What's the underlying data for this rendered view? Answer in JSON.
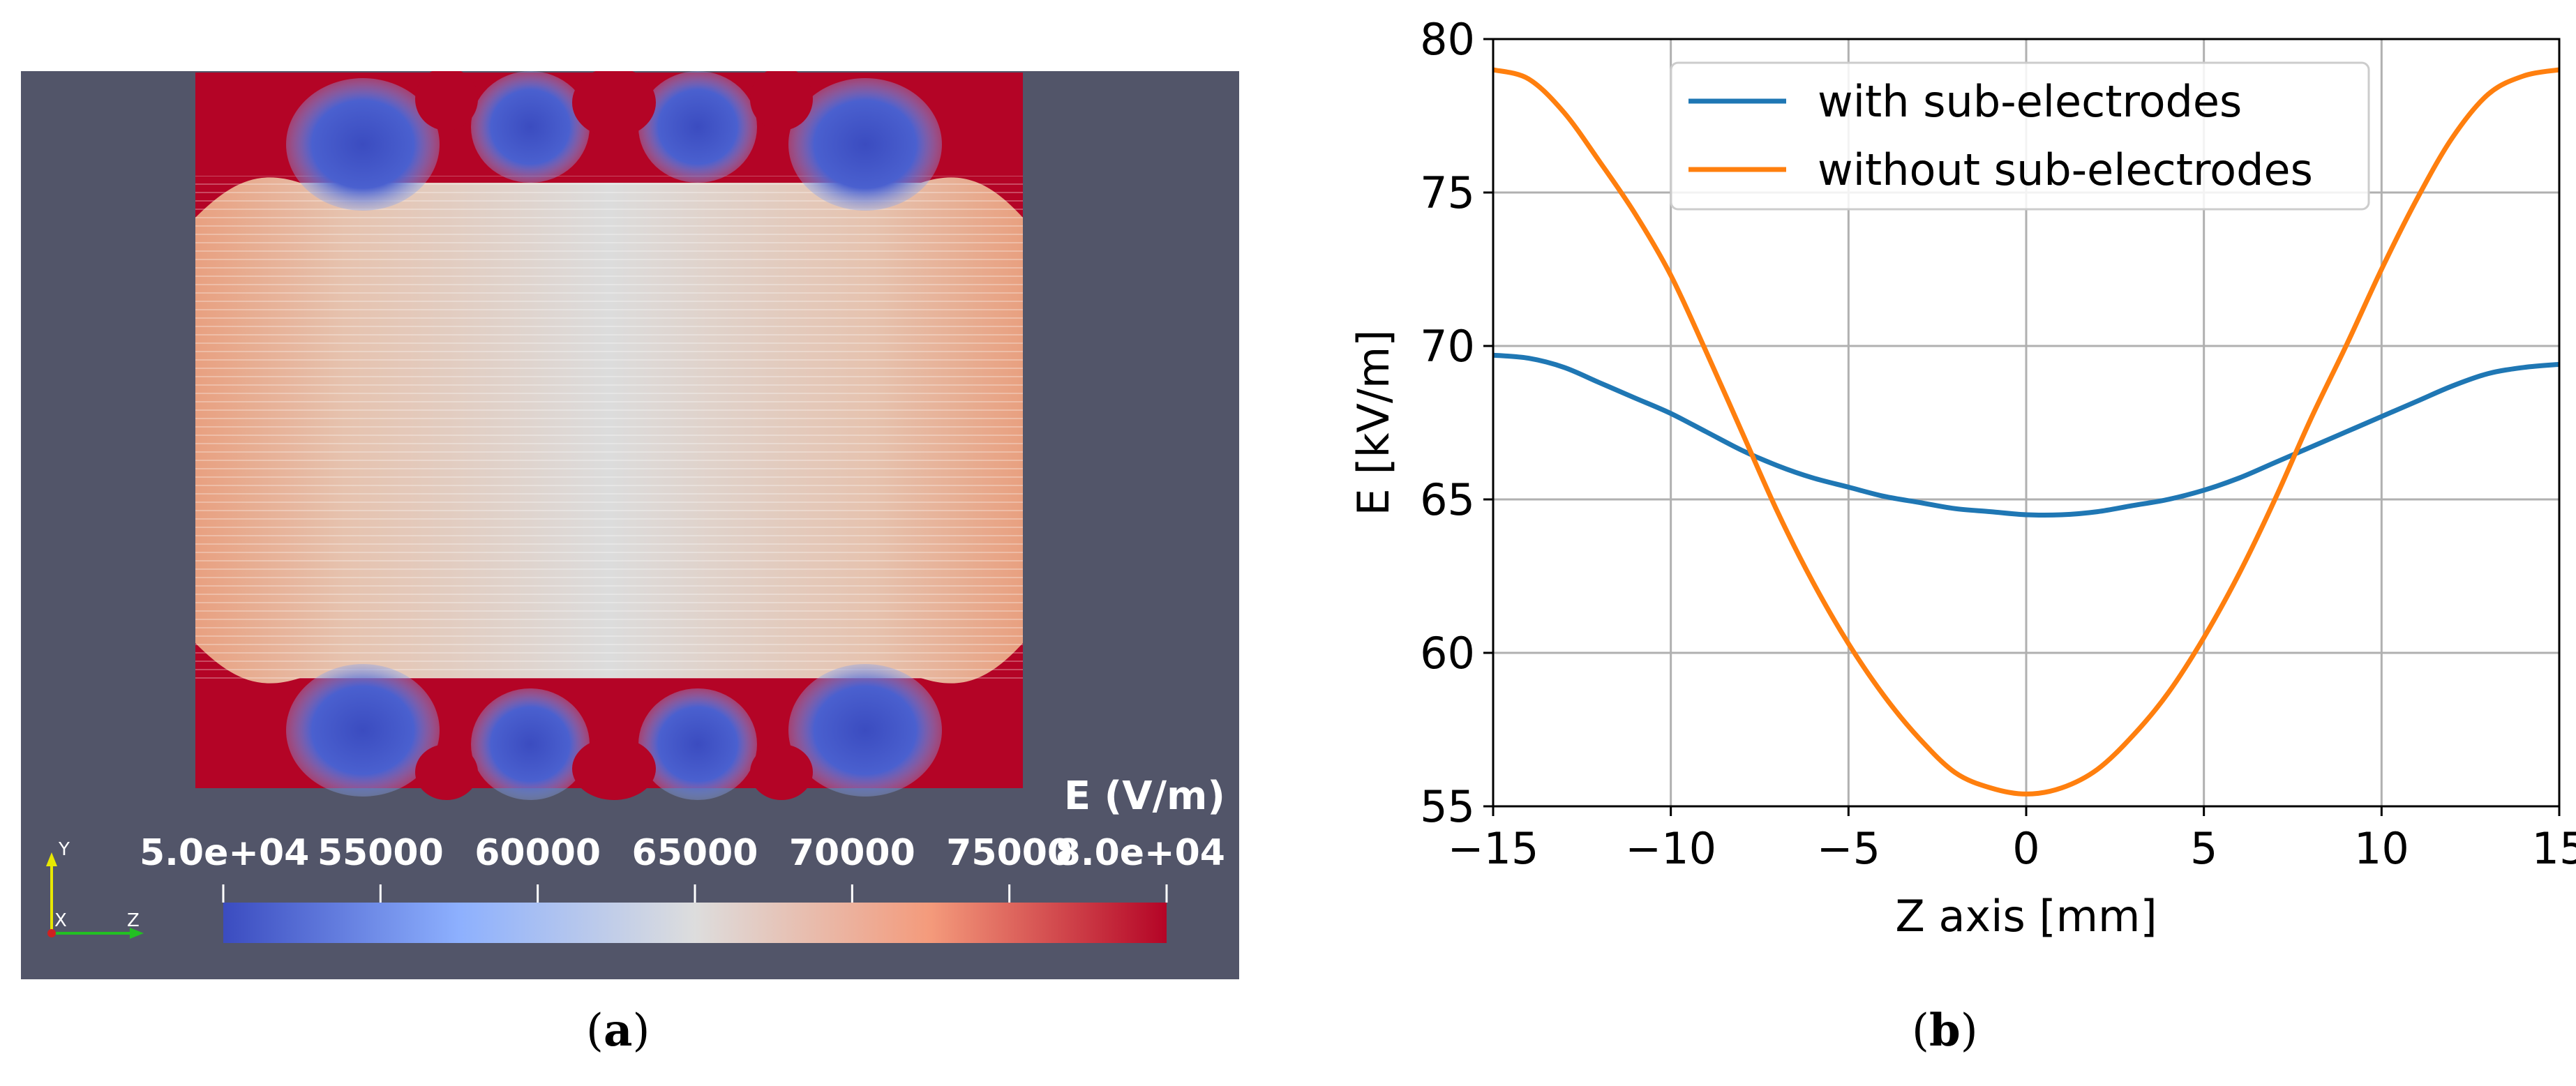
{
  "panel_a": {
    "caption_open": "(",
    "caption_letter": "a",
    "caption_close": ")",
    "colorbar_title": "E (V/m)",
    "colorbar_ticks": [
      "5.0e+04",
      "55000",
      "60000",
      "65000",
      "70000",
      "75000",
      "8.0e+04"
    ],
    "axes_labels": {
      "y": "Y",
      "x": "X",
      "z": "Z"
    },
    "colors": {
      "background": "#525569",
      "low": "#3b4cc0",
      "mid": "#dddddd",
      "high": "#b40426"
    }
  },
  "panel_b": {
    "caption_open": "(",
    "caption_letter": "b",
    "caption_close": ")"
  },
  "chart_data": {
    "type": "line",
    "title": "",
    "xlabel": "Z axis [mm]",
    "ylabel": "E [kV/m]",
    "xlim": [
      -15,
      15
    ],
    "ylim": [
      55,
      80
    ],
    "xticks": [
      -15,
      -10,
      -5,
      0,
      5,
      10,
      15
    ],
    "xtick_labels": [
      "−15",
      "−10",
      "−5",
      "0",
      "5",
      "10",
      "15"
    ],
    "yticks": [
      55,
      60,
      65,
      70,
      75,
      80
    ],
    "ytick_labels": [
      "55",
      "60",
      "65",
      "70",
      "75",
      "80"
    ],
    "grid": true,
    "legend_position": "top-center",
    "series": [
      {
        "name": "with sub-electrodes",
        "color": "#1f77b4",
        "x": [
          -15,
          -14,
          -13,
          -12,
          -11,
          -10,
          -9,
          -8,
          -7,
          -6,
          -5,
          -4,
          -3,
          -2,
          -1,
          0,
          1,
          2,
          3,
          4,
          5,
          6,
          7,
          8,
          9,
          10,
          11,
          12,
          13,
          14,
          15
        ],
        "y": [
          69.7,
          69.6,
          69.3,
          68.8,
          68.3,
          67.8,
          67.2,
          66.6,
          66.1,
          65.7,
          65.4,
          65.1,
          64.9,
          64.7,
          64.6,
          64.5,
          64.5,
          64.6,
          64.8,
          65.0,
          65.3,
          65.7,
          66.2,
          66.7,
          67.2,
          67.7,
          68.2,
          68.7,
          69.1,
          69.3,
          69.4
        ]
      },
      {
        "name": "without sub-electrodes",
        "color": "#ff7f0e",
        "x": [
          -15,
          -14,
          -13,
          -12,
          -11,
          -10,
          -9,
          -8,
          -7,
          -6,
          -5,
          -4,
          -3,
          -2,
          -1,
          0,
          1,
          2,
          3,
          4,
          5,
          6,
          7,
          8,
          9,
          10,
          11,
          12,
          13,
          14,
          15
        ],
        "y": [
          79.0,
          78.7,
          77.6,
          76.0,
          74.3,
          72.3,
          69.8,
          67.2,
          64.6,
          62.3,
          60.3,
          58.6,
          57.2,
          56.1,
          55.6,
          55.4,
          55.6,
          56.2,
          57.3,
          58.7,
          60.5,
          62.6,
          65.0,
          67.6,
          70.0,
          72.5,
          74.8,
          76.8,
          78.2,
          78.8,
          79.0
        ]
      }
    ]
  }
}
